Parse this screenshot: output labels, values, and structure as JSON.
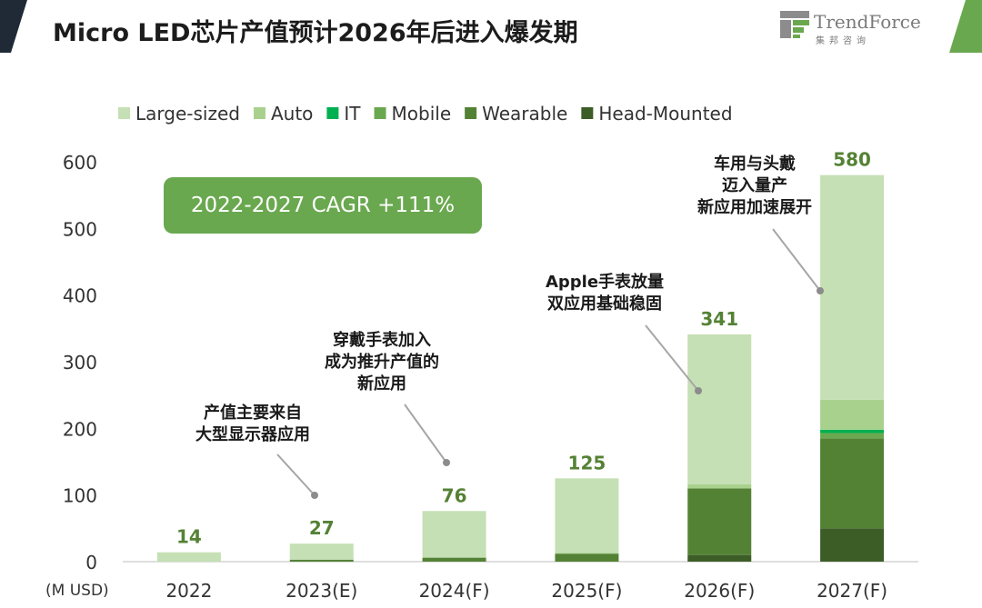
{
  "header": {
    "title": "Micro LED芯片产值预计2026年后进入爆发期",
    "logo_name": "TrendForce",
    "logo_sub": "集邦咨询"
  },
  "colors": {
    "deco_dark": "#1f2a36",
    "deco_green": "#6aa84f"
  },
  "chart_data": {
    "type": "bar",
    "stacked": true,
    "title": "Micro LED芯片产值预计2026年后进入爆发期",
    "categories": [
      "2022",
      "2023(E)",
      "2024(F)",
      "2025(F)",
      "2026(F)",
      "2027(F)"
    ],
    "series": [
      {
        "name": "Head-Mounted",
        "color": "#3d5d27",
        "values": [
          0,
          0,
          0,
          0,
          10,
          50
        ]
      },
      {
        "name": "Wearable",
        "color": "#548235",
        "values": [
          0,
          3,
          6,
          12,
          100,
          135
        ]
      },
      {
        "name": "Mobile",
        "color": "#6aa84f",
        "values": [
          0,
          0,
          0,
          0,
          0,
          8
        ]
      },
      {
        "name": "IT",
        "color": "#00b050",
        "values": [
          0,
          0,
          0,
          0,
          0,
          5
        ]
      },
      {
        "name": "Auto",
        "color": "#a9d18e",
        "values": [
          0,
          0,
          0,
          1,
          6,
          45
        ]
      },
      {
        "name": "Large-sized",
        "color": "#c5e0b4",
        "values": [
          14,
          24,
          70,
          112,
          225,
          337
        ]
      }
    ],
    "totals": [
      14,
      27,
      76,
      125,
      341,
      580
    ],
    "legend_order": [
      "Large-sized",
      "Auto",
      "IT",
      "Mobile",
      "Wearable",
      "Head-Mounted"
    ],
    "legend_position": "top",
    "ylim": [
      0,
      600
    ],
    "yticks": [
      0,
      100,
      200,
      300,
      400,
      500,
      600
    ],
    "unit_label": "(M USD)",
    "grid": false,
    "cagr_label": "2022-2027 CAGR +111%",
    "annotations": [
      {
        "lines": [
          "产值主要来自",
          "大型显示器应用"
        ],
        "category": "2023(E)",
        "value": 100
      },
      {
        "lines": [
          "穿戴手表加入",
          "成为推升产值的",
          "新应用"
        ],
        "category": "2024(F)",
        "value": 150
      },
      {
        "lines": [
          "Apple手表放量",
          "双应用基础稳固"
        ],
        "category": "2026(F)",
        "value": 250
      },
      {
        "lines": [
          "车用与头戴",
          "迈入量产",
          "新应用加速展开"
        ],
        "category": "2027(F)",
        "value": 400
      }
    ]
  }
}
